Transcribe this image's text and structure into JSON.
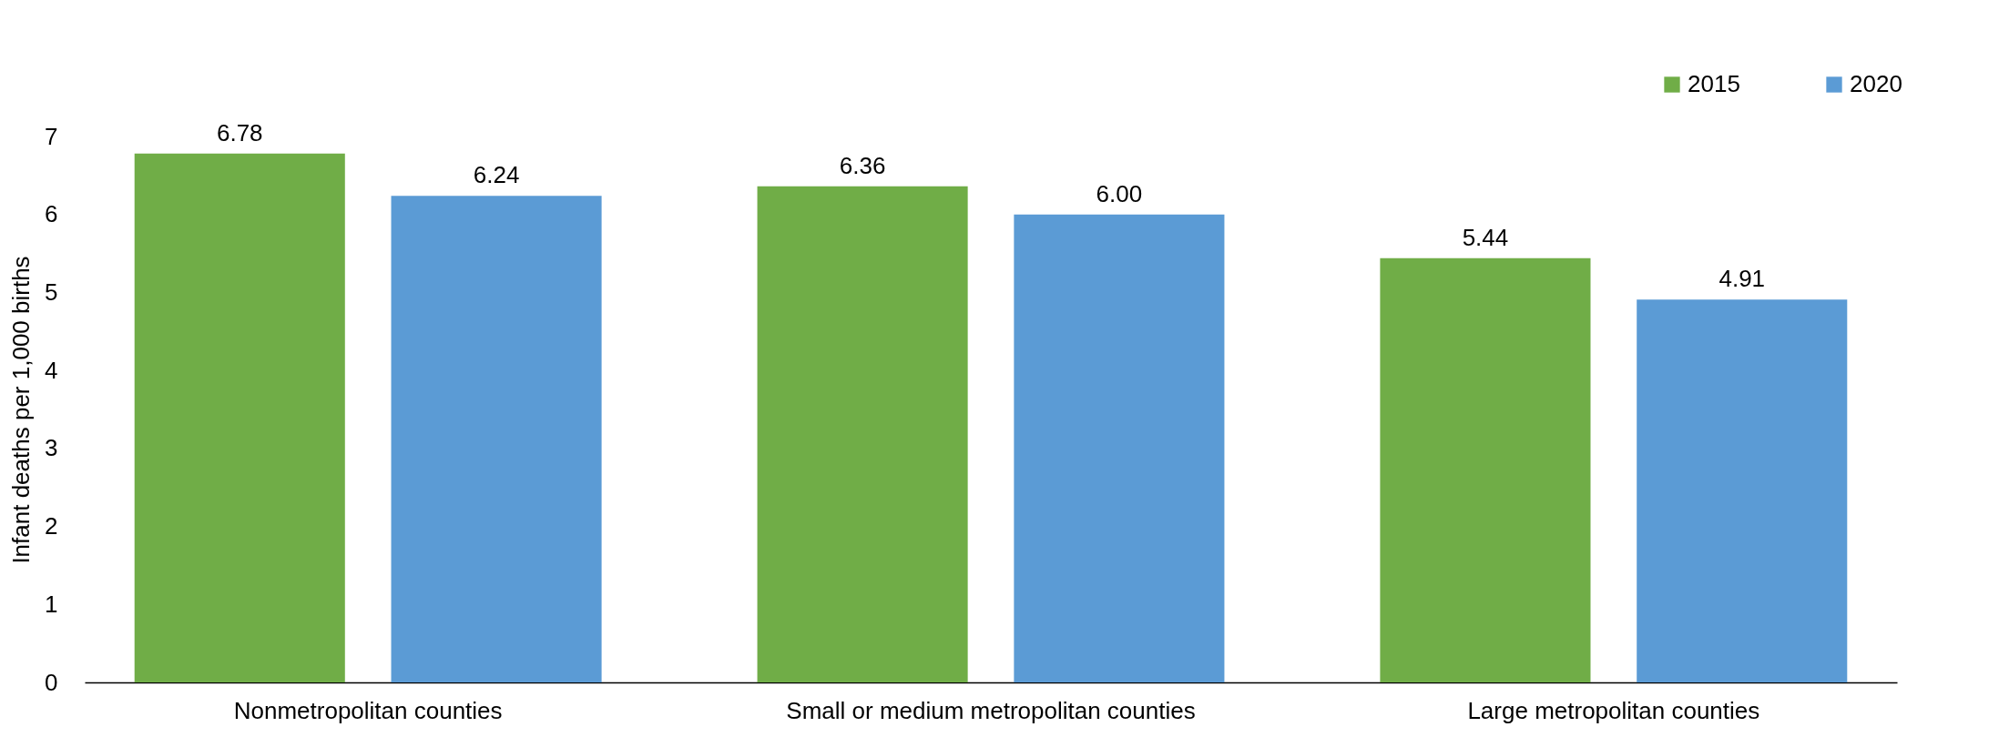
{
  "chart_data": {
    "type": "bar",
    "ylabel": "Infant deaths per 1,000 births",
    "categories": [
      "Nonmetropolitan counties",
      "Small or medium metropolitan counties",
      "Large metropolitan counties"
    ],
    "series": [
      {
        "name": "2015",
        "color": "#70ad47",
        "values": [
          6.78,
          6.36,
          5.44
        ],
        "value_labels": [
          "6.78",
          "6.36",
          "5.44"
        ]
      },
      {
        "name": "2020",
        "color": "#5b9bd5",
        "values": [
          6.24,
          6.0,
          4.91
        ],
        "value_labels": [
          "6.24",
          "6.00",
          "4.91"
        ]
      }
    ],
    "ylim": [
      0,
      7
    ],
    "yticks": [
      0,
      1,
      2,
      3,
      4,
      5,
      6,
      7
    ],
    "legend": "top right"
  }
}
